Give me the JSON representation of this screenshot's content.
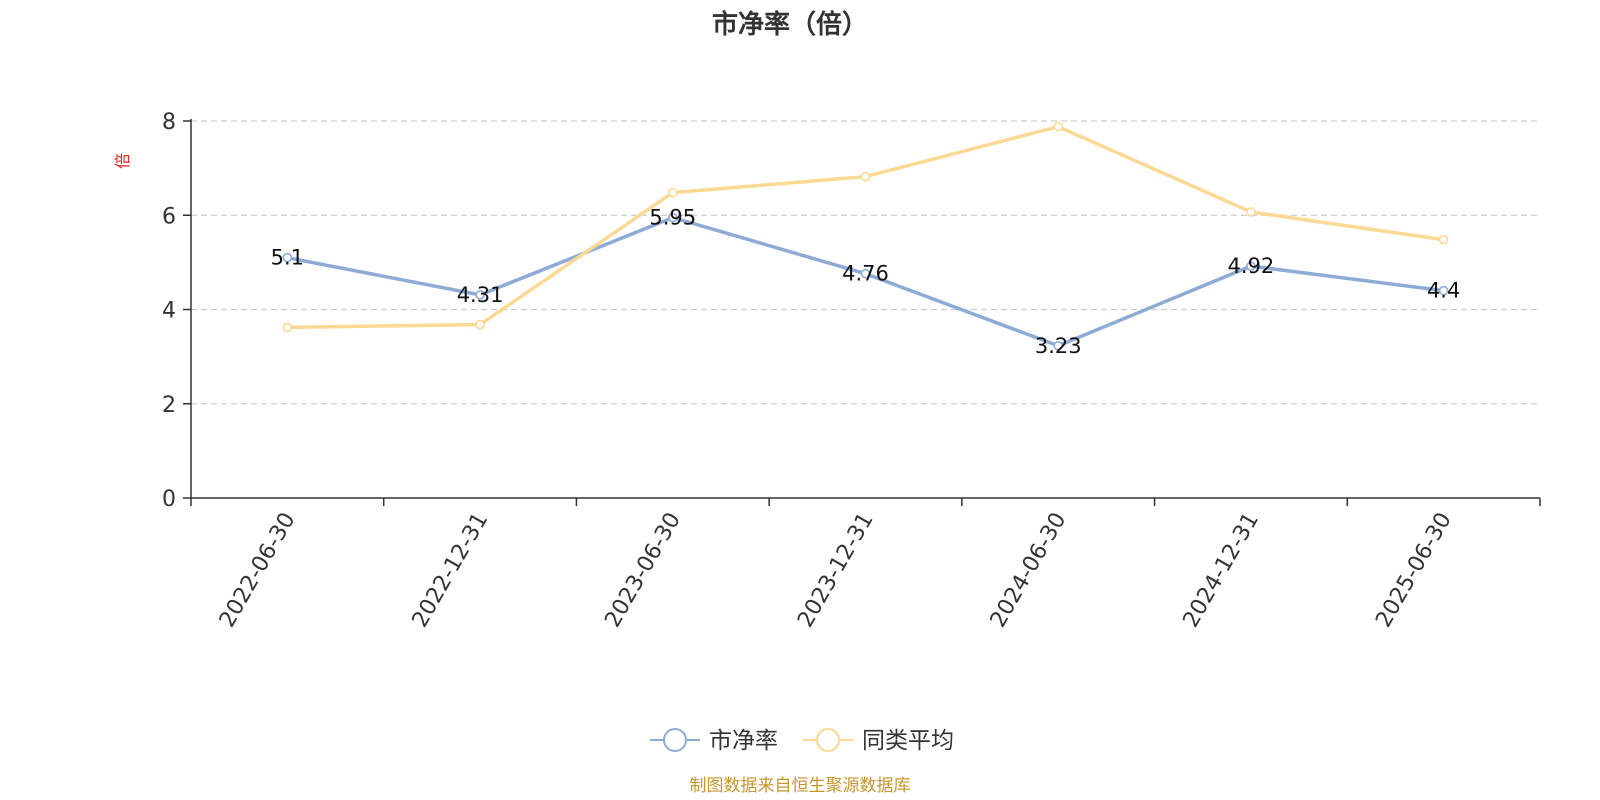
{
  "chart_data": {
    "type": "line",
    "title": "市净率（倍）",
    "ylabel": "倍",
    "ylim": [
      0,
      8
    ],
    "yticks": [
      0,
      2,
      4,
      6,
      8
    ],
    "categories": [
      "2022-06-30",
      "2022-12-31",
      "2023-06-30",
      "2023-12-31",
      "2024-06-30",
      "2024-12-31",
      "2025-06-30"
    ],
    "series": [
      {
        "name": "市净率",
        "values": [
          5.1,
          4.31,
          5.95,
          4.76,
          3.23,
          4.92,
          4.4
        ],
        "labels": [
          "5.1",
          "4.31",
          "5.95",
          "4.76",
          "3.23",
          "4.92",
          "4.4"
        ],
        "color": "#8eabd6"
      },
      {
        "name": "同类平均",
        "values": [
          3.62,
          3.68,
          6.48,
          6.82,
          7.88,
          6.07,
          5.48
        ],
        "color": "#fbd994"
      }
    ],
    "grid": "horizontal-dashed",
    "legend_position": "bottom-center",
    "source": "制图数据来自恒生聚源数据库",
    "ylabel_color": "#e02020",
    "source_color": "#c8962e"
  }
}
